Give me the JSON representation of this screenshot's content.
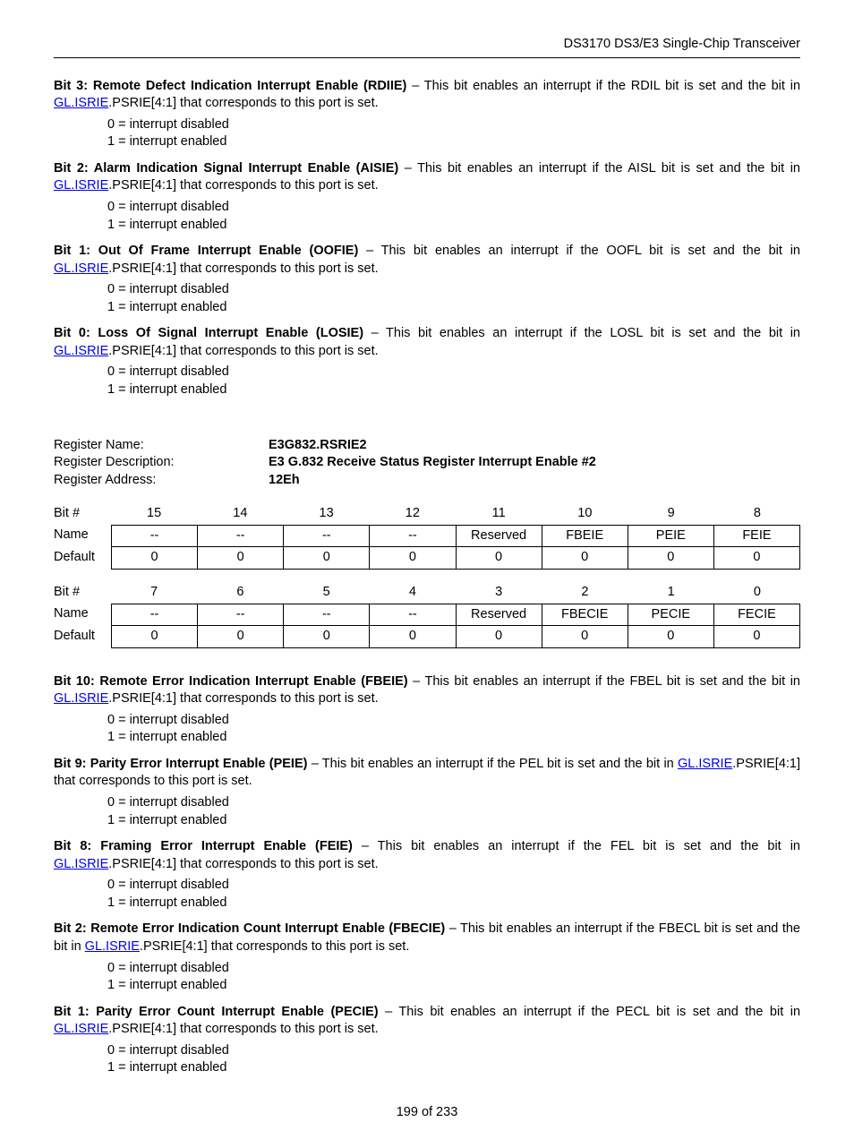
{
  "header": {
    "title": "DS3170 DS3/E3 Single-Chip Transceiver"
  },
  "link_text": "GL.ISRIE",
  "link_suffix": ".PSRIE[4:1] that corresponds to this port is set.",
  "opt0": "0 = interrupt disabled",
  "opt1": "1 = interrupt enabled",
  "bits_top": [
    {
      "title": "Bit 3: Remote Defect Indication Interrupt Enable (RDIIE)",
      "desc1": " – This bit enables an interrupt if the RDIL bit is set and the bit in "
    },
    {
      "title": "Bit 2: Alarm Indication Signal Interrupt Enable (AISIE)",
      "desc1": " – This bit enables an interrupt if the AISL bit is set and the bit in "
    },
    {
      "title": "Bit 1: Out Of Frame Interrupt Enable (OOFIE)",
      "desc1": " – This bit enables an interrupt if the OOFL bit is set and the bit in "
    },
    {
      "title": "Bit 0: Loss Of Signal Interrupt Enable (LOSIE)",
      "desc1": " – This bit enables an interrupt if the LOSL bit is set and the bit in "
    }
  ],
  "register": {
    "name_label": "Register Name:",
    "name_value": "E3G832.RSRIE2",
    "desc_label": "Register Description:",
    "desc_value": "E3 G.832 Receive Status Register Interrupt Enable #2",
    "addr_label": "Register Address:",
    "addr_value": "12Eh"
  },
  "table1": {
    "bit_label": "Bit #",
    "name_label": "Name",
    "default_label": "Default",
    "bits": [
      "15",
      "14",
      "13",
      "12",
      "11",
      "10",
      "9",
      "8"
    ],
    "names": [
      "--",
      "--",
      "--",
      "--",
      "Reserved",
      "FBEIE",
      "PEIE",
      "FEIE"
    ],
    "defaults": [
      "0",
      "0",
      "0",
      "0",
      "0",
      "0",
      "0",
      "0"
    ]
  },
  "table2": {
    "bit_label": "Bit #",
    "name_label": "Name",
    "default_label": "Default",
    "bits": [
      "7",
      "6",
      "5",
      "4",
      "3",
      "2",
      "1",
      "0"
    ],
    "names": [
      "--",
      "--",
      "--",
      "--",
      "Reserved",
      "FBECIE",
      "PECIE",
      "FECIE"
    ],
    "defaults": [
      "0",
      "0",
      "0",
      "0",
      "0",
      "0",
      "0",
      "0"
    ]
  },
  "bits_bottom": [
    {
      "title": "Bit 10: Remote Error Indication Interrupt Enable (FBEIE)",
      "desc1": " – This bit enables an interrupt if the FBEL bit is set and the bit in "
    },
    {
      "title": "Bit 9: Parity Error Interrupt Enable (PEIE)",
      "desc1": " – This bit enables an interrupt if the PEL bit is set and the bit in "
    },
    {
      "title": "Bit 8: Framing Error Interrupt Enable (FEIE)",
      "desc1": " – This bit enables an interrupt if the FEL bit is set and the bit in "
    },
    {
      "title": "Bit 2: Remote Error Indication Count Interrupt Enable (FBECIE)",
      "desc1": " – This bit enables an interrupt if the FBECL bit is set and the bit in "
    },
    {
      "title": "Bit 1: Parity Error Count Interrupt Enable (PECIE)",
      "desc1": " – This bit enables an interrupt if the PECL bit is set and the bit in "
    }
  ],
  "footer": {
    "page": "199 of 233"
  }
}
